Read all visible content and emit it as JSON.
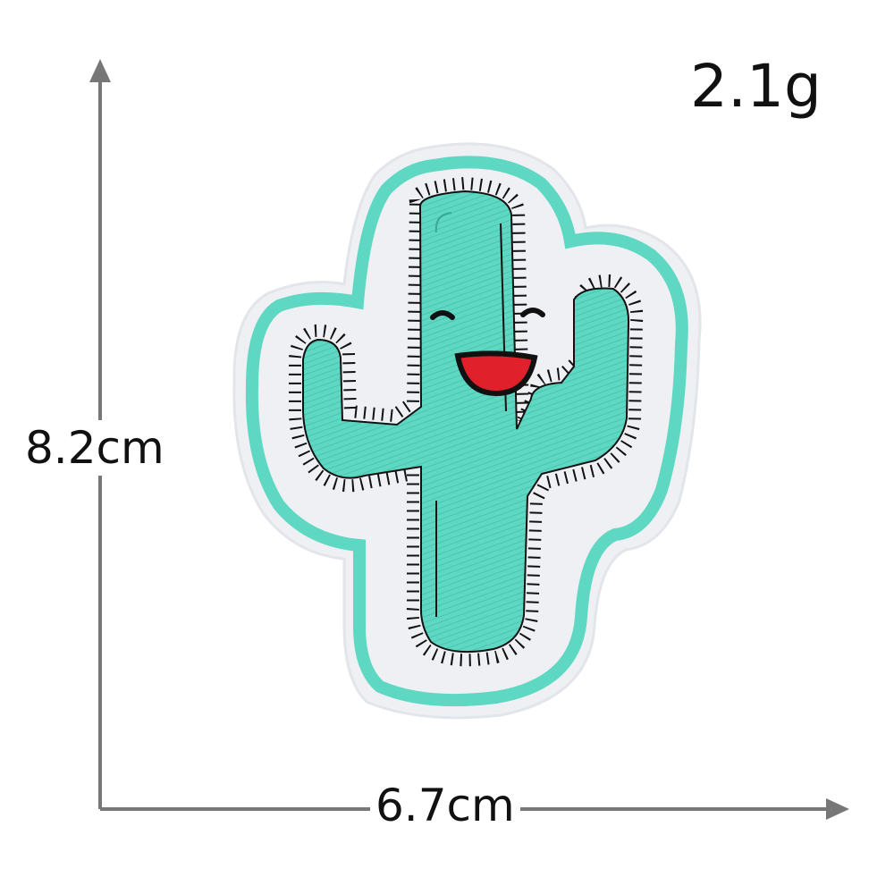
{
  "product": {
    "weight": "2.1g",
    "height": "8.2cm",
    "width": "6.7cm"
  },
  "colors": {
    "patch_green": "#5ed8c2",
    "felt": "#eef0f4",
    "stitch": "#111111",
    "mouth": "#e0202a",
    "dimension_line": "#777777"
  }
}
